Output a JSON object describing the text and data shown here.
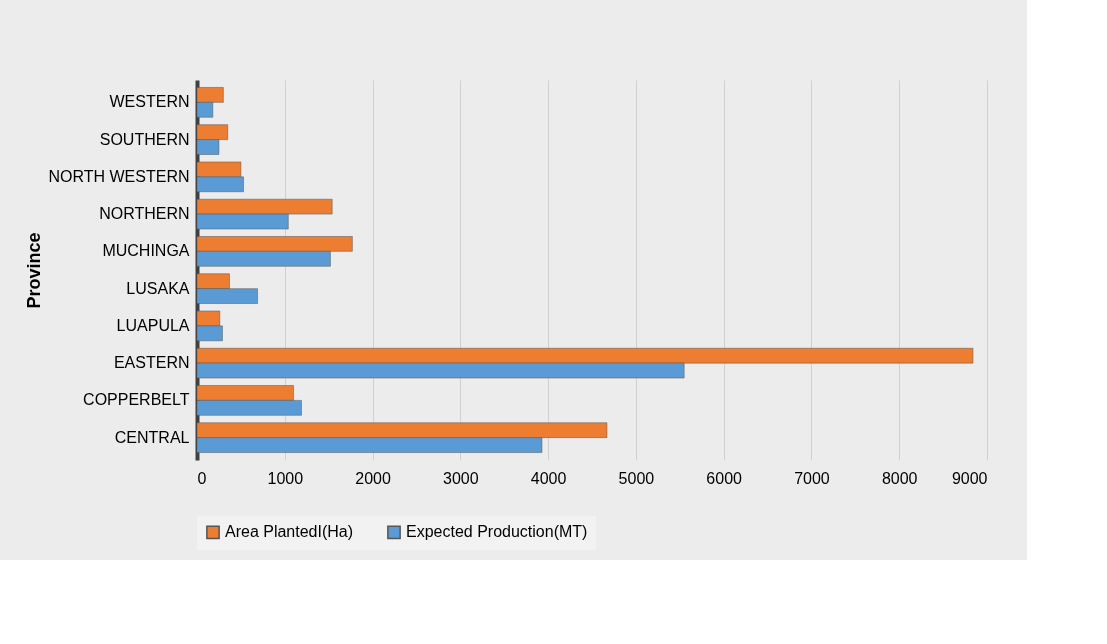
{
  "chart_data": {
    "type": "bar",
    "orientation": "horizontal",
    "ylabel": "Province",
    "categories": [
      "WESTERN",
      "SOUTHERN",
      "NORTH WESTERN",
      "NORTHERN",
      "MUCHINGA",
      "LUSAKA",
      "LUAPULA",
      "EASTERN",
      "COPPERBELT",
      "CENTRAL"
    ],
    "series": [
      {
        "name": "Area PlantedI(Ha)",
        "color": "#ed7d31",
        "values": [
          300,
          350,
          500,
          1540,
          1770,
          370,
          260,
          8840,
          1100,
          4670
        ]
      },
      {
        "name": "Expected Production(MT)",
        "color": "#5b9bd5",
        "values": [
          180,
          250,
          530,
          1040,
          1520,
          690,
          290,
          5550,
          1190,
          3930
        ]
      }
    ],
    "xlim": [
      0,
      9000
    ],
    "xticks": [
      0,
      1000,
      2000,
      3000,
      4000,
      5000,
      6000,
      7000,
      8000,
      9000
    ],
    "grid": "x",
    "legend": "bottom"
  }
}
